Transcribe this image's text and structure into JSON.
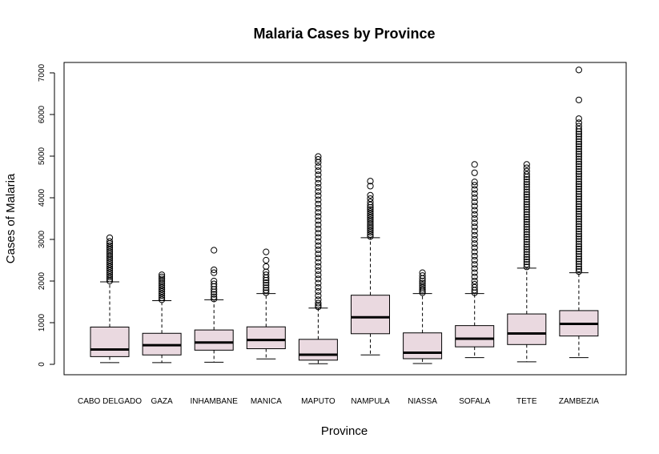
{
  "chart_data": {
    "type": "boxplot",
    "title": "Malaria Cases by Province",
    "xlabel": "Province",
    "ylabel": "Cases of Malaria",
    "ylim": [
      -250,
      7250
    ],
    "yticks": [
      0,
      1000,
      2000,
      3000,
      4000,
      5000,
      6000,
      7000
    ],
    "box_color": "#ead9e0",
    "categories": [
      "CABO DELGADO",
      "GAZA",
      "INHAMBANE",
      "MANICA",
      "MAPUTO",
      "NAMPULA",
      "NIASSA",
      "SOFALA",
      "TETE",
      "ZAMBEZIA"
    ],
    "series": [
      {
        "category": "CABO DELGADO",
        "whisker_low": 40,
        "q1": 185,
        "median": 355,
        "q3": 895,
        "whisker_high": 1980,
        "outliers": [
          2000,
          2050,
          2100,
          2150,
          2200,
          2250,
          2300,
          2350,
          2400,
          2450,
          2500,
          2550,
          2600,
          2650,
          2700,
          2750,
          2800,
          2850,
          2900,
          2950,
          3040
        ]
      },
      {
        "category": "GAZA",
        "whisker_low": 40,
        "q1": 225,
        "median": 460,
        "q3": 745,
        "whisker_high": 1530,
        "outliers": [
          1550,
          1600,
          1650,
          1700,
          1750,
          1800,
          1850,
          1900,
          1950,
          2000,
          2050,
          2100,
          2150
        ]
      },
      {
        "category": "INHAMBANE",
        "whisker_low": 50,
        "q1": 340,
        "median": 525,
        "q3": 825,
        "whisker_high": 1550,
        "outliers": [
          1570,
          1620,
          1680,
          1740,
          1800,
          1870,
          1930,
          2000,
          2200,
          2270,
          2740
        ]
      },
      {
        "category": "MANICA",
        "whisker_low": 130,
        "q1": 375,
        "median": 585,
        "q3": 900,
        "whisker_high": 1700,
        "outliers": [
          1720,
          1780,
          1840,
          1900,
          1960,
          2020,
          2080,
          2150,
          2220,
          2350,
          2500,
          2700
        ]
      },
      {
        "category": "MAPUTO",
        "whisker_low": 15,
        "q1": 100,
        "median": 230,
        "q3": 600,
        "whisker_high": 1350,
        "outliers": [
          1380,
          1420,
          1470,
          1550,
          1650,
          1750,
          1850,
          1950,
          2050,
          2150,
          2250,
          2350,
          2450,
          2550,
          2650,
          2750,
          2850,
          2950,
          3050,
          3150,
          3250,
          3350,
          3450,
          3550,
          3650,
          3750,
          3850,
          3950,
          4050,
          4150,
          4250,
          4350,
          4450,
          4550,
          4650,
          4750,
          4850,
          4920,
          4990
        ]
      },
      {
        "category": "NAMPULA",
        "whisker_low": 225,
        "q1": 735,
        "median": 1130,
        "q3": 1660,
        "whisker_high": 3040,
        "outliers": [
          3070,
          3120,
          3170,
          3220,
          3270,
          3320,
          3370,
          3420,
          3470,
          3520,
          3570,
          3620,
          3670,
          3720,
          3770,
          3830,
          3900,
          3980,
          4060,
          4280,
          4400
        ]
      },
      {
        "category": "NIASSA",
        "whisker_low": 20,
        "q1": 135,
        "median": 280,
        "q3": 755,
        "whisker_high": 1700,
        "outliers": [
          1720,
          1760,
          1800,
          1850,
          1900,
          1950,
          2000,
          2060,
          2130,
          2200
        ]
      },
      {
        "category": "SOFALA",
        "whisker_low": 160,
        "q1": 420,
        "median": 615,
        "q3": 930,
        "whisker_high": 1700,
        "outliers": [
          1720,
          1780,
          1850,
          1920,
          2000,
          2100,
          2200,
          2300,
          2400,
          2500,
          2600,
          2700,
          2800,
          2900,
          3000,
          3100,
          3200,
          3300,
          3400,
          3500,
          3600,
          3700,
          3800,
          3900,
          4000,
          4100,
          4200,
          4300,
          4380,
          4600,
          4800
        ]
      },
      {
        "category": "TETE",
        "whisker_low": 60,
        "q1": 475,
        "median": 740,
        "q3": 1210,
        "whisker_high": 2310,
        "outliers": [
          2340,
          2400,
          2460,
          2520,
          2580,
          2640,
          2700,
          2760,
          2820,
          2880,
          2940,
          3000,
          3060,
          3120,
          3180,
          3240,
          3300,
          3360,
          3420,
          3480,
          3540,
          3600,
          3660,
          3720,
          3780,
          3840,
          3900,
          3960,
          4020,
          4080,
          4140,
          4200,
          4260,
          4320,
          4380,
          4440,
          4500,
          4560,
          4640,
          4720,
          4800
        ]
      },
      {
        "category": "ZAMBEZIA",
        "whisker_low": 160,
        "q1": 680,
        "median": 970,
        "q3": 1290,
        "whisker_high": 2200,
        "outliers": [
          2230,
          2290,
          2350,
          2410,
          2470,
          2530,
          2590,
          2650,
          2710,
          2770,
          2830,
          2890,
          2950,
          3010,
          3070,
          3130,
          3190,
          3250,
          3310,
          3370,
          3430,
          3490,
          3550,
          3610,
          3670,
          3730,
          3790,
          3850,
          3910,
          3970,
          4030,
          4090,
          4150,
          4210,
          4270,
          4330,
          4390,
          4450,
          4510,
          4570,
          4630,
          4690,
          4750,
          4810,
          4870,
          4930,
          4990,
          5050,
          5110,
          5170,
          5230,
          5290,
          5350,
          5410,
          5470,
          5530,
          5590,
          5650,
          5720,
          5800,
          5900,
          6350,
          7070
        ]
      }
    ]
  }
}
